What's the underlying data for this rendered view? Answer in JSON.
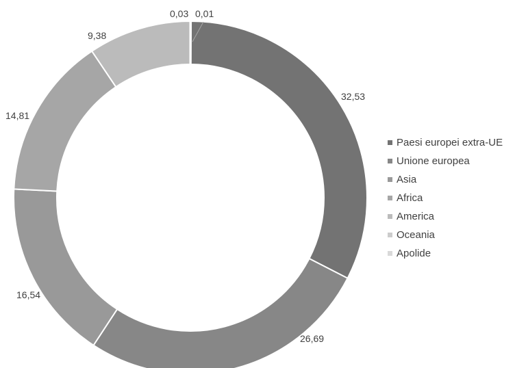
{
  "chart_data": {
    "type": "pie",
    "style": "doughnut",
    "legend_position": "right",
    "series": [
      {
        "name": "Paesi europei extra-UE",
        "value": 32.53,
        "label": "32,53",
        "color": "#737373"
      },
      {
        "name": "Unione europea",
        "value": 26.69,
        "label": "26,69",
        "color": "#878787"
      },
      {
        "name": "Asia",
        "value": 16.54,
        "label": "16,54",
        "color": "#999999"
      },
      {
        "name": "Africa",
        "value": 14.81,
        "label": "14,81",
        "color": "#a6a6a6"
      },
      {
        "name": "America",
        "value": 9.38,
        "label": "9,38",
        "color": "#bbbbbb"
      },
      {
        "name": "Oceania",
        "value": 0.03,
        "label": "0,03",
        "color": "#cccccc"
      },
      {
        "name": "Apolide",
        "value": 0.01,
        "label": "0,01",
        "color": "#d9d9d9"
      }
    ],
    "drawing_order": [
      "Apolide",
      "Paesi europei extra-UE",
      "Unione europea",
      "Asia",
      "Africa",
      "America",
      "Oceania"
    ]
  }
}
